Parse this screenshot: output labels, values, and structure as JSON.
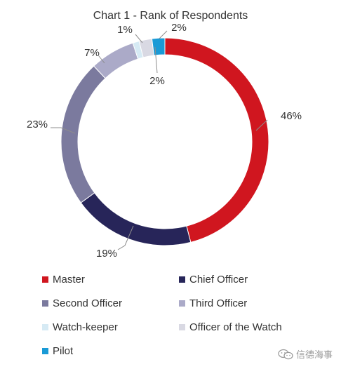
{
  "chart_data": {
    "type": "pie",
    "title": "Chart 1 - Rank of Respondents",
    "donut": true,
    "slices": [
      {
        "label": "Master",
        "value": 46,
        "value_label": "46%",
        "color": "#d0161f"
      },
      {
        "label": "Chief Officer",
        "value": 19,
        "value_label": "19%",
        "color": "#272559"
      },
      {
        "label": "Second Officer",
        "value": 23,
        "value_label": "23%",
        "color": "#7b7a9e"
      },
      {
        "label": "Third Officer",
        "value": 7,
        "value_label": "7%",
        "color": "#abaac8"
      },
      {
        "label": "Watch-keeper",
        "value": 1,
        "value_label": "1%",
        "color": "#d6eaf4"
      },
      {
        "label": "Officer of the Watch",
        "value": 2,
        "value_label": "2%",
        "color": "#d9d9e3"
      },
      {
        "label": "Pilot",
        "value": 2,
        "value_label": "2%",
        "color": "#1a9ad6"
      }
    ],
    "legend_position": "bottom"
  },
  "watermark": {
    "text": "信德海事",
    "icon": "wechat-icon"
  }
}
